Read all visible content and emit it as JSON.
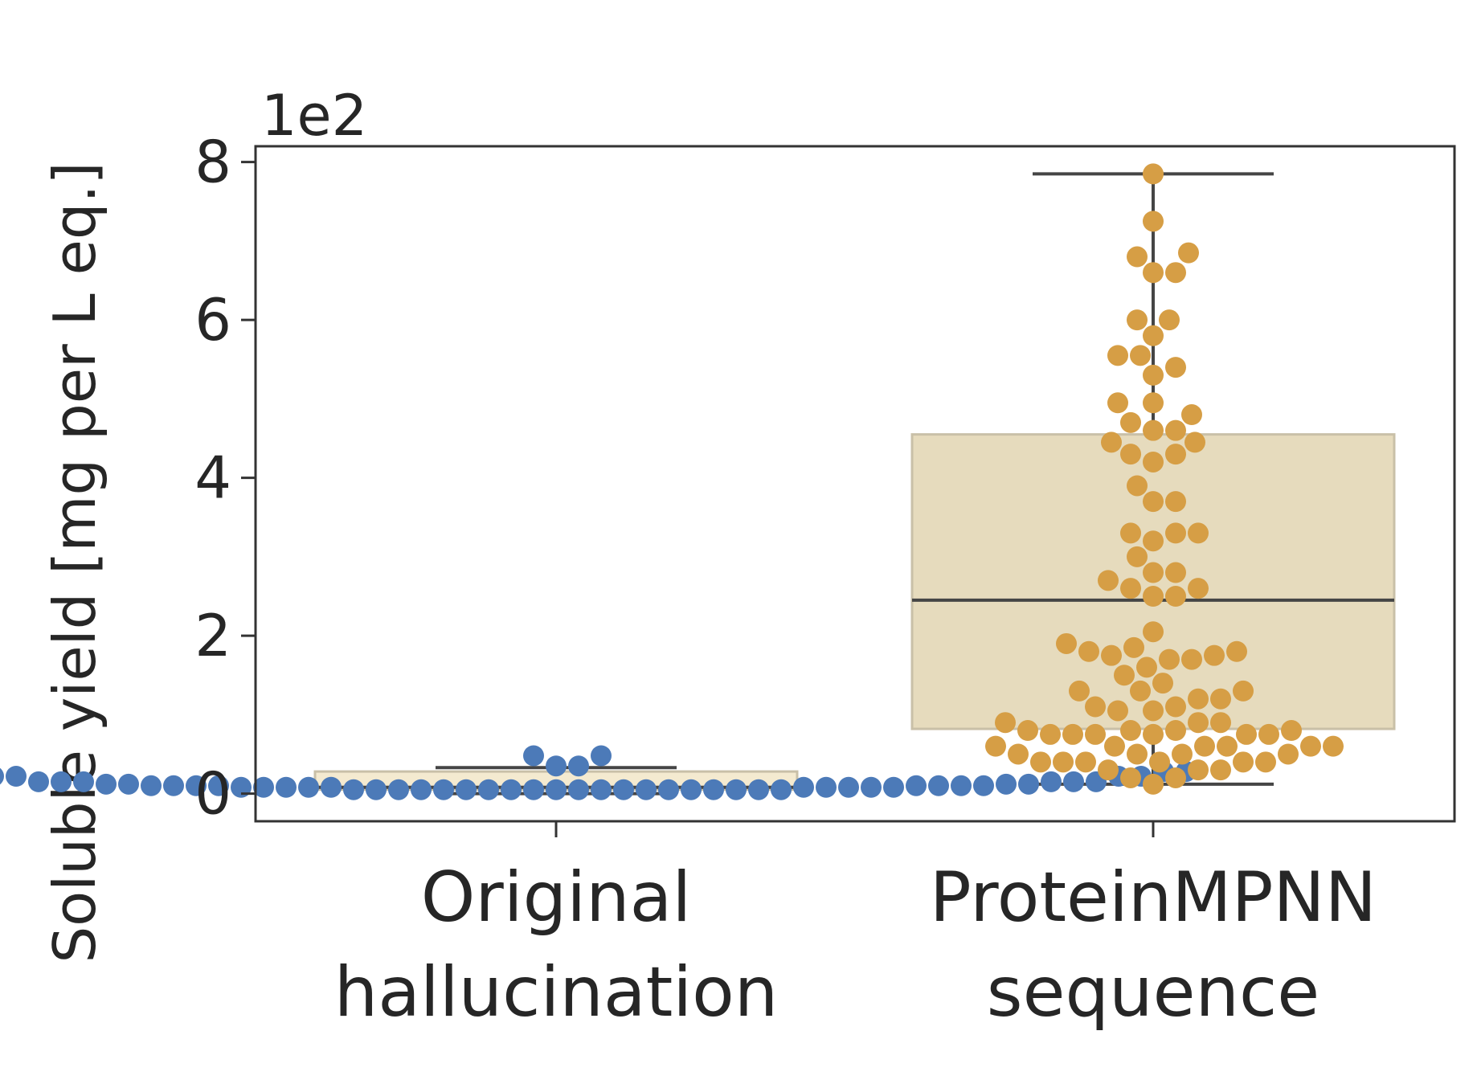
{
  "chart_data": {
    "type": "box",
    "ylabel": "Soluble yield [mg per L eq.]",
    "offset_label": "1e2",
    "ylim": [
      -0.35,
      8.2
    ],
    "yticks": [
      0,
      2,
      4,
      6,
      8
    ],
    "grid": false,
    "categories": [
      {
        "lines": [
          "Original",
          "hallucination"
        ]
      },
      {
        "lines": [
          "ProteinMPNN",
          "sequence"
        ]
      }
    ],
    "series": [
      {
        "color": "#4c7ab8",
        "box_fill": "#f3e9c8",
        "box": {
          "q1": 0.05,
          "median": 0.08,
          "q3": 0.28,
          "whisker_low": 0.0,
          "whisker_high": 0.33
        },
        "points": [
          0.05,
          0.05,
          0.05,
          0.05,
          0.05,
          0.05,
          0.05,
          0.05,
          0.05,
          0.05,
          0.05,
          0.05,
          0.05,
          0.05,
          0.05,
          0.05,
          0.05,
          0.05,
          0.05,
          0.05,
          0.08,
          0.08,
          0.08,
          0.08,
          0.08,
          0.08,
          0.08,
          0.08,
          0.08,
          0.08,
          0.1,
          0.1,
          0.1,
          0.1,
          0.1,
          0.1,
          0.1,
          0.1,
          0.12,
          0.12,
          0.12,
          0.12,
          0.15,
          0.15,
          0.15,
          0.15,
          0.15,
          0.15,
          0.22,
          0.22,
          0.22,
          0.22,
          0.28,
          0.28,
          0.28,
          0.28,
          0.28,
          0.35,
          0.35,
          0.48,
          0.48
        ]
      },
      {
        "color": "#d69e45",
        "box_fill": "#e6dbbd",
        "box": {
          "q1": 0.82,
          "median": 2.45,
          "q3": 4.55,
          "whisker_low": 0.12,
          "whisker_high": 7.85
        },
        "points": [
          0.12,
          0.2,
          0.2,
          0.3,
          0.3,
          0.3,
          0.4,
          0.4,
          0.4,
          0.4,
          0.4,
          0.4,
          0.5,
          0.5,
          0.5,
          0.5,
          0.6,
          0.6,
          0.6,
          0.6,
          0.6,
          0.6,
          0.75,
          0.75,
          0.75,
          0.75,
          0.75,
          0.75,
          0.8,
          0.8,
          0.8,
          0.8,
          0.9,
          0.9,
          0.9,
          1.05,
          1.05,
          1.1,
          1.1,
          1.2,
          1.2,
          1.3,
          1.3,
          1.3,
          1.4,
          1.5,
          1.6,
          1.7,
          1.7,
          1.75,
          1.75,
          1.8,
          1.8,
          1.85,
          1.9,
          2.05,
          2.5,
          2.5,
          2.6,
          2.6,
          2.7,
          2.8,
          2.8,
          3.0,
          3.2,
          3.3,
          3.3,
          3.3,
          3.7,
          3.7,
          3.9,
          4.2,
          4.3,
          4.3,
          4.45,
          4.45,
          4.6,
          4.6,
          4.7,
          4.8,
          4.95,
          4.95,
          5.3,
          5.4,
          5.55,
          5.55,
          5.8,
          6.0,
          6.0,
          6.6,
          6.6,
          6.8,
          6.85,
          7.25,
          7.85
        ]
      }
    ]
  }
}
